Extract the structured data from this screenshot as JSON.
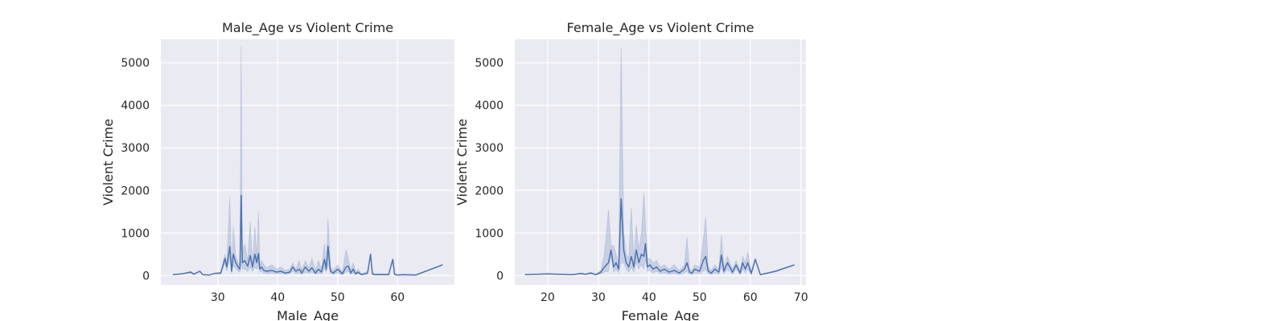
{
  "colors": {
    "background": "#eaeaf2",
    "grid": "#ffffff",
    "series": "#4c72b0",
    "text": "#262626"
  },
  "chart_data": [
    {
      "type": "line",
      "title": "Male_Age vs Violent Crime",
      "xlabel": "Male_Age",
      "ylabel": "Violent Crime",
      "xlim": [
        20.5,
        69.5
      ],
      "ylim": [
        -220,
        5550
      ],
      "xticks": [
        30,
        40,
        50,
        60
      ],
      "yticks": [
        0,
        1000,
        2000,
        3000,
        4000,
        5000
      ],
      "grid": true,
      "series": [
        {
          "x": [
            22.5,
            24.0,
            25.5,
            26.0,
            27.0,
            27.5,
            28.5,
            29.5,
            30.5,
            31.2,
            31.5,
            32.0,
            32.3,
            32.6,
            33.0,
            33.4,
            33.7,
            33.9,
            34.1,
            34.5,
            35.0,
            35.4,
            35.8,
            36.2,
            36.5,
            36.8,
            37.0,
            37.3,
            37.7,
            38.2,
            39.0,
            39.8,
            40.5,
            41.3,
            42.0,
            42.5,
            43.0,
            43.6,
            44.0,
            44.6,
            45.2,
            45.7,
            46.3,
            46.8,
            47.3,
            47.8,
            48.1,
            48.4,
            48.8,
            49.3,
            50.0,
            50.8,
            51.4,
            51.8,
            52.2,
            52.6,
            53.0,
            53.4,
            54.0,
            55.0,
            55.5,
            55.8,
            56.1,
            57.0,
            58.5,
            59.2,
            59.5,
            60.0,
            61.0,
            63.0,
            67.5
          ],
          "y": [
            20,
            40,
            80,
            30,
            100,
            20,
            10,
            50,
            60,
            400,
            200,
            680,
            100,
            500,
            300,
            200,
            150,
            1880,
            300,
            350,
            220,
            470,
            200,
            500,
            300,
            520,
            150,
            200,
            120,
            100,
            120,
            80,
            100,
            60,
            80,
            200,
            100,
            150,
            60,
            200,
            100,
            180,
            60,
            150,
            80,
            380,
            150,
            690,
            100,
            60,
            150,
            40,
            200,
            220,
            60,
            150,
            40,
            80,
            20,
            60,
            500,
            50,
            20,
            20,
            20,
            380,
            30,
            10,
            20,
            10,
            250
          ],
          "upper": [
            20,
            40,
            100,
            40,
            110,
            20,
            10,
            60,
            80,
            500,
            300,
            1850,
            150,
            1150,
            450,
            300,
            250,
            5380,
            500,
            750,
            350,
            1250,
            300,
            1150,
            400,
            1500,
            250,
            350,
            250,
            180,
            250,
            150,
            200,
            120,
            150,
            300,
            150,
            350,
            120,
            350,
            180,
            400,
            120,
            350,
            150,
            750,
            250,
            1350,
            200,
            120,
            250,
            80,
            600,
            400,
            120,
            300,
            80,
            150,
            40,
            100,
            520,
            80,
            40,
            40,
            40,
            400,
            50,
            20,
            30,
            20,
            260
          ],
          "lower": [
            20,
            40,
            60,
            20,
            90,
            20,
            10,
            40,
            40,
            300,
            100,
            400,
            50,
            250,
            150,
            100,
            80,
            300,
            150,
            150,
            100,
            200,
            100,
            200,
            150,
            250,
            80,
            100,
            60,
            50,
            60,
            40,
            50,
            30,
            40,
            100,
            50,
            60,
            30,
            80,
            50,
            80,
            30,
            60,
            40,
            150,
            80,
            300,
            50,
            30,
            60,
            20,
            80,
            100,
            30,
            60,
            20,
            40,
            10,
            30,
            480,
            20,
            10,
            10,
            10,
            360,
            10,
            5,
            10,
            5,
            240
          ]
        }
      ]
    },
    {
      "type": "line",
      "title": "Female_Age vs Violent Crime",
      "xlabel": "Female_Age",
      "ylabel": "Violent Crime",
      "xlim": [
        13.5,
        71.0
      ],
      "ylim": [
        -220,
        5550
      ],
      "xticks": [
        20,
        30,
        40,
        50,
        60,
        70
      ],
      "yticks": [
        0,
        1000,
        2000,
        3000,
        4000,
        5000
      ],
      "grid": true,
      "series": [
        {
          "x": [
            15.5,
            18.0,
            20.0,
            22.0,
            25.0,
            26.5,
            27.5,
            28.5,
            29.5,
            30.5,
            31.2,
            32.0,
            32.5,
            33.0,
            33.5,
            34.0,
            34.5,
            35.0,
            35.5,
            36.0,
            36.5,
            37.0,
            37.5,
            38.0,
            38.5,
            39.0,
            39.3,
            39.7,
            40.2,
            40.8,
            41.5,
            42.2,
            43.0,
            44.0,
            45.0,
            46.0,
            47.0,
            47.5,
            48.0,
            48.5,
            49.0,
            50.0,
            50.7,
            51.2,
            51.7,
            52.3,
            53.0,
            53.8,
            54.3,
            54.8,
            55.5,
            56.5,
            57.2,
            58.0,
            58.5,
            59.0,
            59.5,
            60.2,
            61.0,
            62.0,
            65.0,
            68.7
          ],
          "y": [
            20,
            30,
            40,
            30,
            20,
            50,
            30,
            60,
            20,
            80,
            200,
            300,
            600,
            200,
            300,
            150,
            1800,
            600,
            300,
            200,
            450,
            200,
            600,
            300,
            500,
            450,
            750,
            200,
            250,
            150,
            200,
            100,
            150,
            80,
            120,
            60,
            150,
            300,
            80,
            60,
            150,
            100,
            350,
            450,
            100,
            60,
            150,
            80,
            480,
            100,
            300,
            80,
            250,
            60,
            300,
            150,
            300,
            50,
            380,
            20,
            100,
            250
          ],
          "upper": [
            20,
            30,
            40,
            30,
            20,
            60,
            40,
            80,
            30,
            120,
            500,
            1550,
            700,
            700,
            500,
            300,
            5350,
            1050,
            500,
            400,
            1600,
            400,
            1200,
            600,
            1000,
            1950,
            1200,
            400,
            400,
            300,
            350,
            200,
            250,
            150,
            250,
            120,
            250,
            900,
            150,
            120,
            250,
            200,
            800,
            1380,
            200,
            120,
            250,
            150,
            950,
            200,
            450,
            150,
            350,
            120,
            450,
            300,
            550,
            100,
            400,
            30,
            110,
            260
          ],
          "lower": [
            20,
            30,
            40,
            30,
            20,
            40,
            20,
            40,
            10,
            40,
            80,
            100,
            500,
            80,
            150,
            60,
            300,
            300,
            150,
            80,
            200,
            80,
            300,
            150,
            250,
            150,
            400,
            100,
            120,
            60,
            100,
            50,
            60,
            30,
            50,
            20,
            60,
            100,
            30,
            20,
            60,
            40,
            100,
            150,
            40,
            20,
            60,
            30,
            200,
            40,
            150,
            30,
            150,
            20,
            150,
            60,
            150,
            20,
            360,
            10,
            90,
            240
          ]
        }
      ]
    }
  ]
}
